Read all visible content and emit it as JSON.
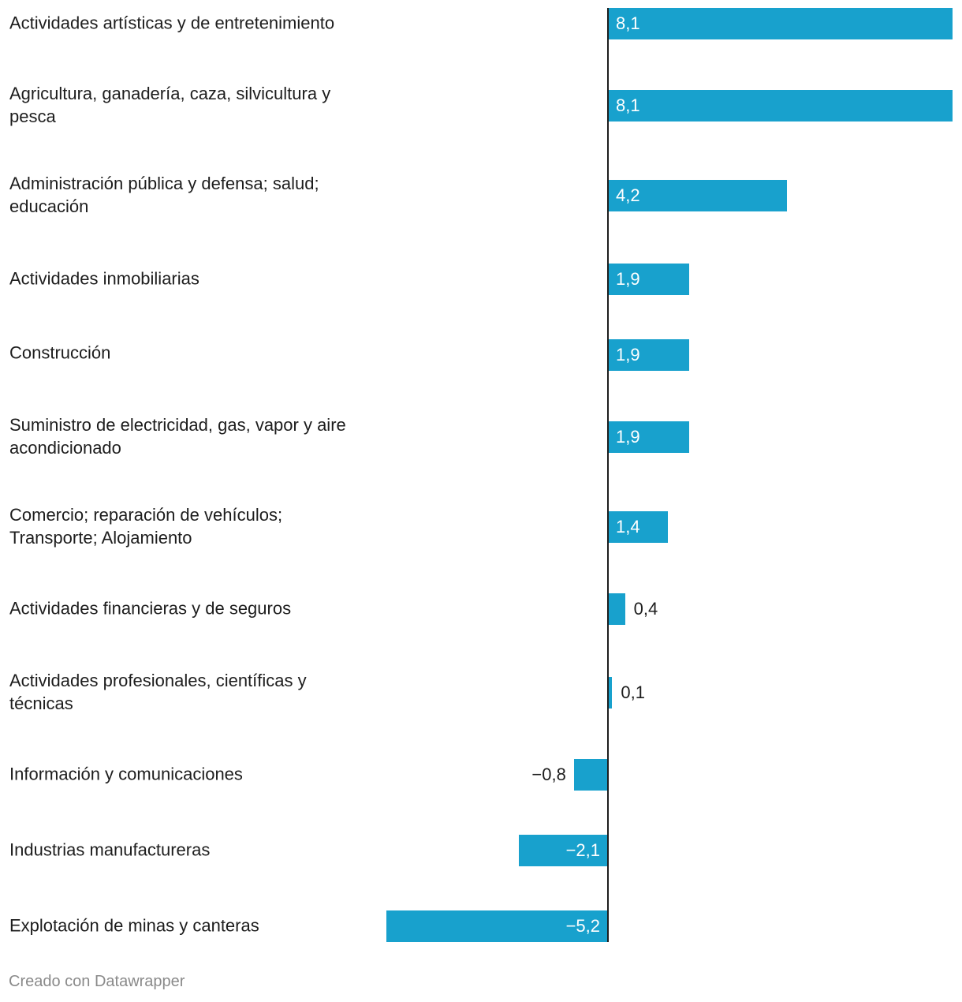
{
  "chart_data": {
    "type": "bar",
    "orientation": "horizontal",
    "categories": [
      "Actividades artísticas y de entretenimiento",
      "Agricultura, ganadería, caza, silvicultura y\npesca",
      "Administración pública y defensa; salud;\neducación",
      "Actividades inmobiliarias",
      "Construcción",
      "Suministro de electricidad, gas, vapor y aire\nacondicionado",
      "Comercio; reparación de vehículos;\nTransporte; Alojamiento",
      "Actividades financieras y de seguros",
      "Actividades profesionales, científicas y\ntécnicas",
      "Información y comunicaciones",
      "Industrias manufactureras",
      "Explotación de minas y canteras"
    ],
    "values": [
      8.1,
      8.1,
      4.2,
      1.9,
      1.9,
      1.9,
      1.4,
      0.4,
      0.1,
      -0.8,
      -2.1,
      -5.2
    ],
    "value_labels": [
      "8,1",
      "8,1",
      "4,2",
      "1,9",
      "1,9",
      "1,9",
      "1,4",
      "0,4",
      "0,1",
      "−0,8",
      "−2,1",
      "−5,2"
    ],
    "xlim": [
      -5.2,
      8.1
    ],
    "bar_color": "#18a1cd",
    "axis_color": "#1d1d1d",
    "title": "",
    "xlabel": "",
    "ylabel": ""
  },
  "footer": {
    "credit": "Creado con Datawrapper"
  }
}
